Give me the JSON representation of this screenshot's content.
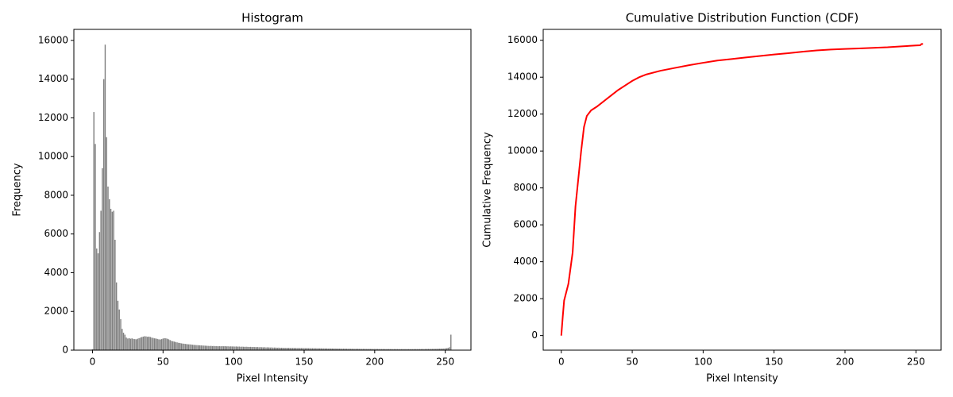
{
  "chart_data": [
    {
      "type": "bar",
      "title": "Histogram",
      "x_label": "Pixel Intensity",
      "y_label": "Frequency",
      "color": "#808080",
      "x": [
        0,
        1,
        2,
        3,
        4,
        5,
        6,
        7,
        8,
        9,
        10,
        11,
        12,
        13,
        14,
        15,
        16,
        17,
        18,
        19,
        20,
        21,
        22,
        23,
        24,
        25,
        26,
        27,
        28,
        29,
        30,
        31,
        32,
        33,
        34,
        35,
        36,
        37,
        38,
        39,
        40,
        41,
        42,
        43,
        44,
        45,
        46,
        47,
        48,
        49,
        50,
        51,
        52,
        53,
        54,
        55,
        56,
        57,
        58,
        59,
        60,
        61,
        62,
        63,
        64,
        65,
        66,
        67,
        68,
        69,
        70,
        71,
        72,
        73,
        74,
        75,
        76,
        77,
        78,
        79,
        80,
        81,
        82,
        83,
        84,
        85,
        86,
        87,
        88,
        89,
        90,
        91,
        92,
        93,
        94,
        95,
        96,
        97,
        98,
        99,
        100,
        101,
        102,
        103,
        104,
        105,
        106,
        107,
        108,
        109,
        110,
        111,
        112,
        113,
        114,
        115,
        116,
        117,
        118,
        119,
        120,
        121,
        122,
        123,
        124,
        125,
        126,
        127,
        128,
        129,
        130,
        131,
        132,
        133,
        134,
        135,
        136,
        137,
        138,
        139,
        140,
        141,
        142,
        143,
        144,
        145,
        146,
        147,
        148,
        149,
        150,
        151,
        152,
        153,
        154,
        155,
        156,
        157,
        158,
        159,
        160,
        161,
        162,
        163,
        164,
        165,
        166,
        167,
        168,
        169,
        170,
        171,
        172,
        173,
        174,
        175,
        176,
        177,
        178,
        179,
        180,
        181,
        182,
        183,
        184,
        185,
        186,
        187,
        188,
        189,
        190,
        191,
        192,
        193,
        194,
        195,
        196,
        197,
        198,
        199,
        200,
        201,
        202,
        203,
        204,
        205,
        206,
        207,
        208,
        209,
        210,
        211,
        212,
        213,
        214,
        215,
        216,
        217,
        218,
        219,
        220,
        221,
        222,
        223,
        224,
        225,
        226,
        227,
        228,
        229,
        230,
        231,
        232,
        233,
        234,
        235,
        236,
        237,
        238,
        239,
        240,
        241,
        242,
        243,
        244,
        245,
        246,
        247,
        248,
        249,
        250,
        251,
        252,
        253,
        254,
        255
      ],
      "values": [
        50,
        12300,
        10650,
        5250,
        5000,
        6100,
        7200,
        9400,
        14000,
        15780,
        11000,
        8450,
        7800,
        7300,
        7150,
        7200,
        5700,
        3500,
        2550,
        2100,
        1600,
        1100,
        900,
        800,
        650,
        600,
        620,
        590,
        610,
        580,
        570,
        560,
        590,
        620,
        650,
        680,
        700,
        720,
        710,
        690,
        700,
        680,
        650,
        630,
        610,
        600,
        580,
        560,
        550,
        570,
        600,
        620,
        610,
        590,
        560,
        520,
        480,
        460,
        440,
        420,
        400,
        380,
        370,
        350,
        340,
        330,
        320,
        310,
        300,
        300,
        290,
        280,
        270,
        265,
        260,
        255,
        250,
        245,
        240,
        235,
        230,
        225,
        220,
        215,
        220,
        210,
        215,
        205,
        210,
        200,
        205,
        200,
        210,
        200,
        205,
        195,
        200,
        190,
        195,
        190,
        190,
        185,
        190,
        180,
        185,
        175,
        180,
        175,
        170,
        175,
        170,
        165,
        170,
        160,
        165,
        160,
        155,
        160,
        150,
        155,
        150,
        145,
        150,
        140,
        145,
        140,
        135,
        140,
        130,
        135,
        130,
        125,
        130,
        120,
        125,
        120,
        118,
        120,
        115,
        118,
        115,
        112,
        115,
        110,
        112,
        108,
        110,
        105,
        108,
        105,
        105,
        102,
        105,
        100,
        102,
        98,
        100,
        95,
        98,
        95,
        95,
        92,
        95,
        90,
        92,
        88,
        90,
        85,
        88,
        85,
        85,
        82,
        85,
        80,
        82,
        78,
        80,
        75,
        78,
        75,
        75,
        72,
        75,
        70,
        72,
        68,
        70,
        68,
        70,
        66,
        68,
        65,
        66,
        64,
        65,
        62,
        64,
        62,
        63,
        60,
        62,
        60,
        61,
        58,
        60,
        58,
        59,
        57,
        58,
        56,
        58,
        56,
        57,
        55,
        56,
        55,
        56,
        54,
        55,
        54,
        55,
        54,
        55,
        53,
        54,
        53,
        55,
        54,
        56,
        55,
        57,
        56,
        58,
        57,
        60,
        58,
        62,
        60,
        64,
        62,
        66,
        64,
        68,
        66,
        70,
        72,
        75,
        78,
        80,
        85,
        90,
        100,
        120,
        150,
        800,
        0
      ],
      "xlim": [
        -13.2,
        268.2
      ],
      "ylim": [
        0,
        16569
      ],
      "xticks": [
        0,
        50,
        100,
        150,
        200,
        250
      ],
      "yticks": [
        0,
        2000,
        4000,
        6000,
        8000,
        10000,
        12000,
        14000,
        16000
      ]
    },
    {
      "type": "line",
      "title": "Cumulative Distribution Function (CDF)",
      "x_label": "Pixel Intensity",
      "y_label": "Cumulative Frequency",
      "color": "#ff0000",
      "x": [
        0,
        1,
        2,
        3,
        5,
        8,
        10,
        12,
        14,
        16,
        18,
        21,
        25,
        30,
        35,
        40,
        45,
        50,
        55,
        60,
        70,
        80,
        90,
        100,
        110,
        120,
        130,
        140,
        150,
        160,
        170,
        180,
        190,
        200,
        210,
        220,
        230,
        240,
        250,
        253,
        254,
        255
      ],
      "values": [
        0,
        1000,
        1900,
        2200,
        2800,
        4500,
        7000,
        8500,
        10000,
        11300,
        11900,
        12200,
        12400,
        12700,
        13000,
        13300,
        13550,
        13800,
        14000,
        14150,
        14350,
        14500,
        14650,
        14780,
        14900,
        14980,
        15070,
        15150,
        15230,
        15300,
        15380,
        15450,
        15500,
        15530,
        15560,
        15590,
        15620,
        15670,
        15720,
        15730,
        15800,
        15800
      ],
      "xlim": [
        -12.75,
        267.75
      ],
      "ylim": [
        -790,
        16590
      ],
      "xticks": [
        0,
        50,
        100,
        150,
        200,
        250
      ],
      "yticks": [
        0,
        2000,
        4000,
        6000,
        8000,
        10000,
        12000,
        14000,
        16000
      ]
    }
  ]
}
